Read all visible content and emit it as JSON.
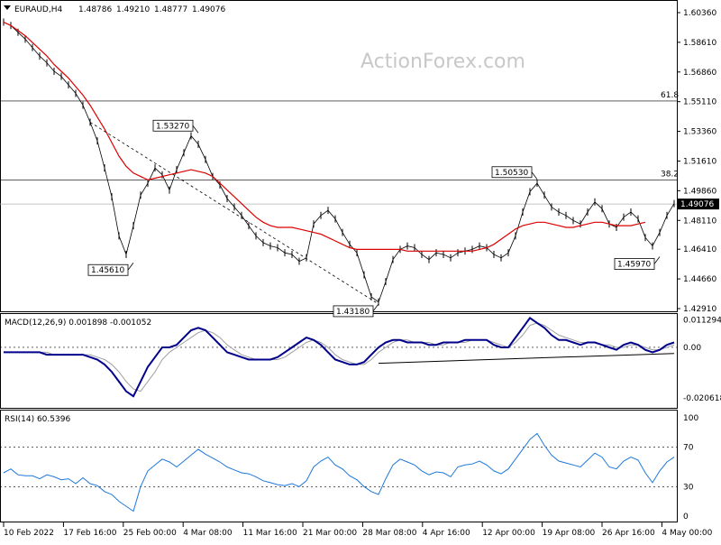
{
  "header": {
    "symbol": "EURAUD,H4",
    "open": "1.48786",
    "high": "1.49210",
    "low": "1.48777",
    "close": "1.49076"
  },
  "watermark": "ActionForex.com",
  "colors": {
    "price": "#000000",
    "ma": "#dd0000",
    "macd": "#00008b",
    "signal": "#a0a0a0",
    "rsi": "#1e78dc",
    "grid": "#000000"
  },
  "chart_data": [
    {
      "type": "line",
      "title": "EURAUD,H4",
      "xlabel": "",
      "ylabel": "",
      "ylim": [
        1.4291,
        1.6036
      ],
      "y_ticks": [
        "1.60360",
        "1.58610",
        "1.56860",
        "1.55110",
        "1.53360",
        "1.51610",
        "1.49860",
        "1.48110",
        "1.46410",
        "1.44660",
        "1.42910"
      ],
      "x_ticks": [
        "10 Feb 2022",
        "17 Feb 16:00",
        "25 Feb 00:00",
        "4 Mar 08:00",
        "11 Mar 16:00",
        "21 Mar 00:00",
        "28 Mar 08:00",
        "4 Apr 16:00",
        "12 Apr 00:00",
        "19 Apr 08:00",
        "26 Apr 16:00",
        "4 May 00:00"
      ],
      "current_price_label": "1.49076",
      "fib_levels": [
        {
          "label": "61.8",
          "value": 1.5515
        },
        {
          "label": "38.2",
          "value": 1.505
        }
      ],
      "annotations": [
        {
          "label": "1.45610",
          "value": 1.4561
        },
        {
          "label": "1.53270",
          "value": 1.5327
        },
        {
          "label": "1.43180",
          "value": 1.4318
        },
        {
          "label": "1.50530",
          "value": 1.5053
        },
        {
          "label": "1.45970",
          "value": 1.4597
        }
      ],
      "series": [
        {
          "values": [
            1.598,
            1.596,
            1.592,
            1.588,
            1.583,
            1.578,
            1.574,
            1.569,
            1.566,
            1.561,
            1.556,
            1.549,
            1.539,
            1.528,
            1.512,
            1.495,
            1.472,
            1.461,
            1.478,
            1.496,
            1.503,
            1.512,
            1.508,
            1.499,
            1.511,
            1.521,
            1.531,
            1.526,
            1.517,
            1.507,
            1.502,
            1.494,
            1.489,
            1.484,
            1.478,
            1.472,
            1.468,
            1.466,
            1.465,
            1.462,
            1.461,
            1.457,
            1.459,
            1.479,
            1.484,
            1.487,
            1.482,
            1.474,
            1.467,
            1.462,
            1.449,
            1.436,
            1.433,
            1.445,
            1.458,
            1.464,
            1.466,
            1.465,
            1.461,
            1.458,
            1.462,
            1.461,
            1.459,
            1.462,
            1.463,
            1.464,
            1.466,
            1.465,
            1.461,
            1.459,
            1.462,
            1.472,
            1.486,
            1.498,
            1.503,
            1.496,
            1.489,
            1.486,
            1.484,
            1.481,
            1.479,
            1.486,
            1.492,
            1.488,
            1.479,
            1.477,
            1.483,
            1.486,
            1.482,
            1.471,
            1.466,
            1.474,
            1.484,
            1.491
          ]
        },
        {
          "values": [
            1.598,
            1.596,
            1.593,
            1.59,
            1.586,
            1.582,
            1.578,
            1.573,
            1.569,
            1.565,
            1.56,
            1.555,
            1.549,
            1.542,
            1.535,
            1.527,
            1.519,
            1.513,
            1.509,
            1.507,
            1.505,
            1.506,
            1.507,
            1.508,
            1.509,
            1.51,
            1.511,
            1.51,
            1.509,
            1.507,
            1.503,
            1.499,
            1.495,
            1.491,
            1.487,
            1.483,
            1.48,
            1.478,
            1.477,
            1.477,
            1.477,
            1.476,
            1.475,
            1.474,
            1.473,
            1.471,
            1.469,
            1.467,
            1.465,
            1.464,
            1.464,
            1.464,
            1.464,
            1.464,
            1.464,
            1.464,
            1.463,
            1.463,
            1.463,
            1.463,
            1.463,
            1.463,
            1.463,
            1.463,
            1.463,
            1.463,
            1.464,
            1.465,
            1.467,
            1.47,
            1.473,
            1.476,
            1.478,
            1.479,
            1.48,
            1.48,
            1.479,
            1.478,
            1.477,
            1.477,
            1.478,
            1.479,
            1.48,
            1.48,
            1.479,
            1.478,
            1.478,
            1.478,
            1.479,
            1.48
          ]
        }
      ]
    },
    {
      "type": "line",
      "title": "MACD(12,26,9) 0.001898 -0.001052",
      "xlabel": "",
      "ylabel": "",
      "ylim": [
        -0.024,
        0.0129
      ],
      "y_ticks": [
        "0.011294",
        "0.00",
        "-0.020618"
      ],
      "trendline": [
        {
          "i": 52,
          "value": -0.0065
        },
        {
          "i": 93,
          "value": -0.0025
        }
      ],
      "series": [
        {
          "values": [
            -0.002,
            -0.002,
            -0.002,
            -0.002,
            -0.002,
            -0.002,
            -0.003,
            -0.003,
            -0.003,
            -0.003,
            -0.003,
            -0.003,
            -0.004,
            -0.005,
            -0.007,
            -0.01,
            -0.014,
            -0.018,
            -0.02,
            -0.014,
            -0.008,
            -0.004,
            0.0,
            0.0,
            0.001,
            0.004,
            0.007,
            0.008,
            0.007,
            0.004,
            0.001,
            -0.002,
            -0.003,
            -0.004,
            -0.005,
            -0.005,
            -0.005,
            -0.005,
            -0.004,
            -0.002,
            -0.0,
            0.002,
            0.004,
            0.003,
            0.001,
            -0.002,
            -0.005,
            -0.006,
            -0.007,
            -0.007,
            -0.006,
            -0.003,
            0.0,
            0.002,
            0.003,
            0.003,
            0.002,
            0.002,
            0.002,
            0.001,
            0.001,
            0.002,
            0.002,
            0.002,
            0.003,
            0.003,
            0.003,
            0.003,
            0.001,
            0.0,
            -0.0,
            0.004,
            0.008,
            0.012,
            0.01,
            0.008,
            0.005,
            0.003,
            0.003,
            0.002,
            0.001,
            0.002,
            0.002,
            0.001,
            0.0,
            -0.001,
            0.001,
            0.002,
            0.001,
            -0.001,
            -0.002,
            -0.001,
            0.001,
            0.002
          ]
        },
        {
          "values": [
            -0.002,
            -0.002,
            -0.002,
            -0.002,
            -0.002,
            -0.002,
            -0.002,
            -0.003,
            -0.003,
            -0.003,
            -0.003,
            -0.003,
            -0.003,
            -0.004,
            -0.005,
            -0.007,
            -0.01,
            -0.014,
            -0.017,
            -0.018,
            -0.014,
            -0.01,
            -0.005,
            -0.002,
            0.0,
            0.002,
            0.004,
            0.006,
            0.007,
            0.006,
            0.004,
            0.001,
            -0.001,
            -0.003,
            -0.004,
            -0.005,
            -0.005,
            -0.005,
            -0.005,
            -0.004,
            -0.002,
            0.0,
            0.002,
            0.003,
            0.002,
            0.0,
            -0.003,
            -0.005,
            -0.006,
            -0.007,
            -0.007,
            -0.005,
            -0.002,
            0.0,
            0.002,
            0.003,
            0.003,
            0.002,
            0.002,
            0.002,
            0.001,
            0.001,
            0.002,
            0.002,
            0.002,
            0.003,
            0.003,
            0.003,
            0.002,
            0.001,
            0.0,
            0.002,
            0.005,
            0.009,
            0.01,
            0.009,
            0.007,
            0.005,
            0.004,
            0.003,
            0.002,
            0.002,
            0.002,
            0.001,
            0.001,
            0.0,
            0.0,
            0.001,
            0.001,
            0.0,
            -0.001,
            -0.001,
            0.0,
            0.001
          ]
        }
      ]
    },
    {
      "type": "line",
      "title": "RSI(14) 60.5396",
      "xlabel": "",
      "ylabel": "",
      "ylim": [
        0,
        100
      ],
      "y_ticks": [
        "100",
        "70",
        "30",
        "0"
      ],
      "levels": [
        70,
        30
      ],
      "series": [
        {
          "values": [
            44,
            48,
            42,
            41,
            41,
            38,
            42,
            40,
            37,
            38,
            33,
            39,
            33,
            31,
            25,
            22,
            15,
            10,
            5,
            30,
            46,
            52,
            58,
            55,
            50,
            56,
            62,
            68,
            63,
            59,
            55,
            50,
            47,
            44,
            43,
            40,
            36,
            34,
            32,
            31,
            33,
            30,
            36,
            50,
            56,
            60,
            52,
            48,
            41,
            37,
            30,
            25,
            22,
            38,
            52,
            58,
            55,
            52,
            46,
            42,
            45,
            44,
            40,
            50,
            52,
            53,
            56,
            52,
            46,
            43,
            48,
            58,
            68,
            78,
            84,
            72,
            62,
            56,
            54,
            52,
            50,
            57,
            64,
            60,
            50,
            48,
            56,
            60,
            57,
            44,
            34,
            46,
            55,
            60
          ]
        }
      ]
    }
  ]
}
